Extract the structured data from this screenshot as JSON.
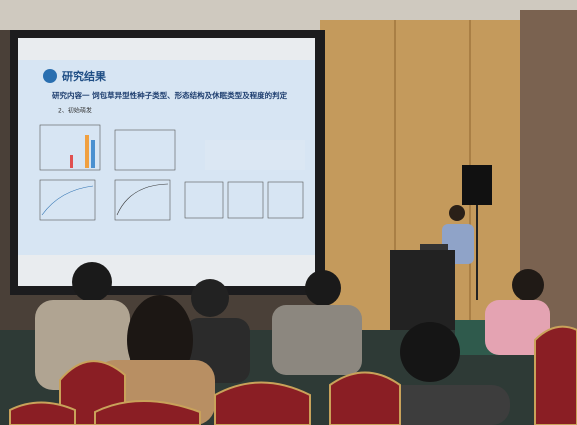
{
  "slide": {
    "section": "研究结果",
    "heading": "研究内容一  饲包草异型性种子类型、形态结构及休眠类型及程度的判定",
    "subheading": "2、初始萌发"
  }
}
